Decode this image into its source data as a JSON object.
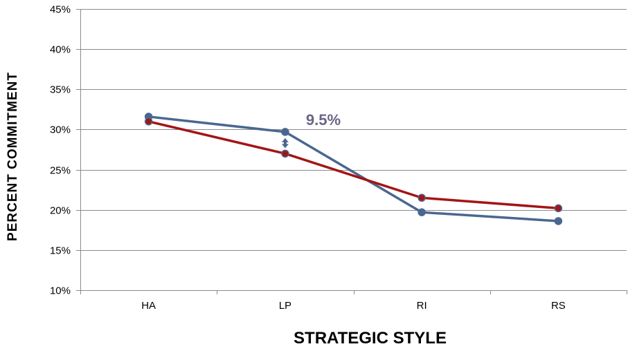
{
  "chart_data": {
    "type": "line",
    "title": "",
    "xlabel": "STRATEGIC STYLE",
    "ylabel": "PERCENT COMMITMENT",
    "categories": [
      "HA",
      "LP",
      "RI",
      "RS"
    ],
    "ylim": [
      10,
      45
    ],
    "yticks": [
      10,
      15,
      20,
      25,
      30,
      35,
      40,
      45
    ],
    "ytick_labels": [
      "10%",
      "15%",
      "20%",
      "25%",
      "30%",
      "35%",
      "40%",
      "45%"
    ],
    "grid": true,
    "legend": "none",
    "series": [
      {
        "color": "#4a6790",
        "values": [
          31.6,
          29.7,
          19.7,
          18.6
        ]
      },
      {
        "color": "#a31515",
        "values": [
          31.0,
          27.0,
          21.5,
          20.2
        ]
      }
    ],
    "annotation": {
      "text": "9.5%",
      "category": "LP",
      "arrow_between_values": [
        27.0,
        29.7
      ]
    }
  }
}
